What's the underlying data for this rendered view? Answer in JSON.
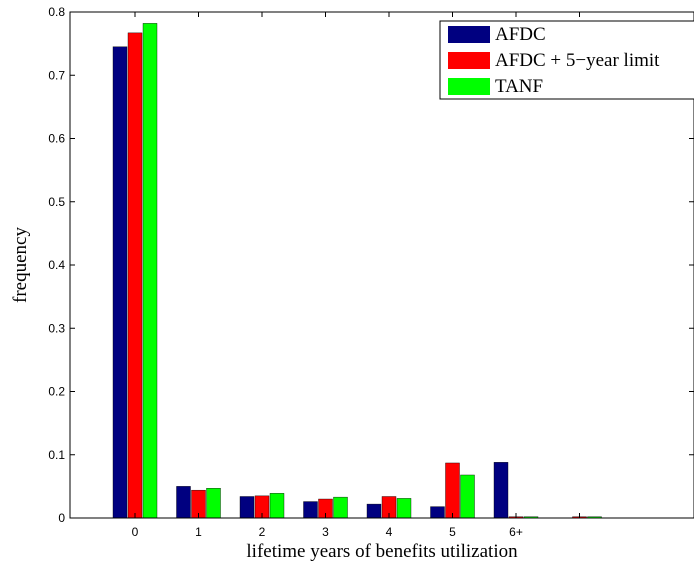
{
  "chart_data": {
    "type": "bar",
    "xlabel": "lifetime years of benefits utilization",
    "ylabel": "frequency",
    "ylim": [
      0,
      0.8
    ],
    "yticks": [
      "0",
      "0.1",
      "0.2",
      "0.3",
      "0.4",
      "0.5",
      "0.6",
      "0.7",
      "0.8"
    ],
    "categories": [
      "0",
      "1",
      "2",
      "3",
      "4",
      "5",
      "6+",
      ""
    ],
    "legend_position": "top-right",
    "grid": false,
    "series": [
      {
        "name": "AFDC",
        "color": "#000080",
        "values": [
          0.745,
          0.05,
          0.034,
          0.026,
          0.022,
          0.018,
          0.088,
          0.0
        ]
      },
      {
        "name": "AFDC + 5−year limit",
        "color": "#ff0000",
        "values": [
          0.767,
          0.044,
          0.035,
          0.03,
          0.034,
          0.087,
          0.002,
          0.002
        ]
      },
      {
        "name": "TANF",
        "color": "#00ff00",
        "values": [
          0.782,
          0.047,
          0.039,
          0.033,
          0.031,
          0.068,
          0.002,
          0.002
        ]
      }
    ]
  }
}
